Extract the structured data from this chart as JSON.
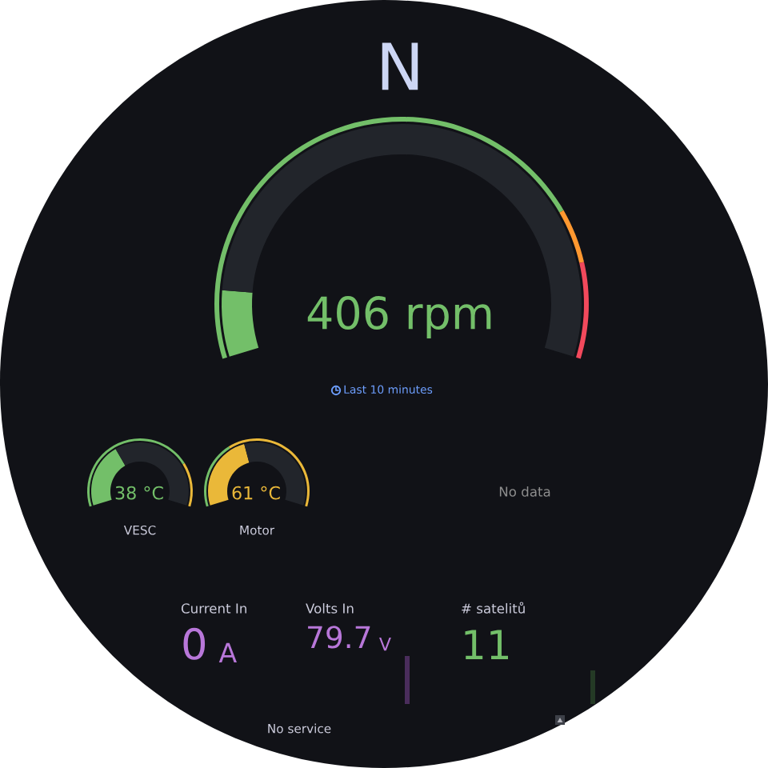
{
  "chart_data": [
    {
      "type": "other",
      "annotations": [
        "N"
      ]
    },
    {
      "type": "donut",
      "series": [
        {
          "values": [
            10,
            90
          ],
          "colors": [
            "#73bf69",
            "#22252b"
          ]
        },
        {
          "values": [
            78,
            8,
            14
          ],
          "colors": [
            "#73bf69",
            "#ff9830",
            "#f2495c"
          ]
        }
      ],
      "annotations": [
        "406 rpm",
        "Last 10 minutes"
      ]
    },
    {
      "type": "donut",
      "title": "VESC",
      "series": [
        {
          "values": [
            36,
            64
          ],
          "colors": [
            "#73bf69",
            "#22252b"
          ]
        },
        {
          "values": [
            77,
            23
          ],
          "colors": [
            "#73bf69",
            "#eab839"
          ]
        }
      ],
      "annotations": [
        "38 °C"
      ]
    },
    {
      "type": "donut",
      "title": "Motor",
      "series": [
        {
          "values": [
            43,
            57
          ],
          "colors": [
            "#eab839",
            "#22252b"
          ]
        },
        {
          "values": [
            35,
            65
          ],
          "colors": [
            "#73bf69",
            "#eab839"
          ]
        }
      ],
      "annotations": [
        "61 °C"
      ]
    },
    {
      "type": "other",
      "annotations": [
        "No data"
      ]
    },
    {
      "type": "other",
      "title": "Current In",
      "annotations": [
        "0",
        "A"
      ]
    },
    {
      "type": "other",
      "title": "Volts In",
      "annotations": [
        "79.7",
        "V"
      ]
    },
    {
      "type": "other",
      "title": "# satelitů",
      "annotations": [
        "11"
      ]
    },
    {
      "type": "other",
      "annotations": [
        "No service"
      ]
    }
  ]
}
